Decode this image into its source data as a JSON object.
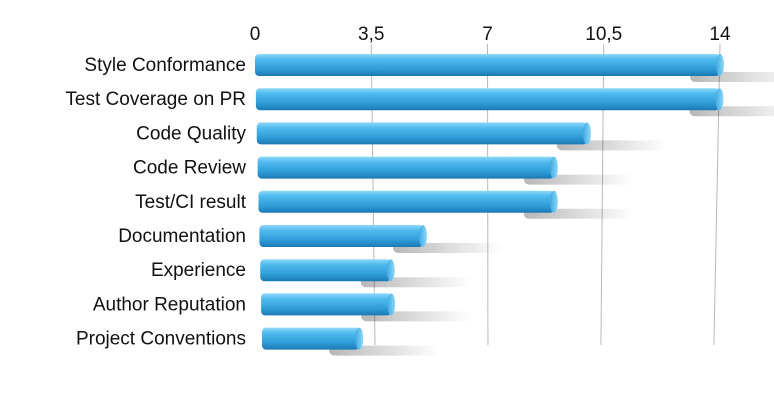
{
  "chart_data": {
    "type": "bar",
    "orientation": "horizontal",
    "categories": [
      "Style Conformance",
      "Test Coverage on PR",
      "Code Quality",
      "Code Review",
      "Test/CI result",
      "Documentation",
      "Experience",
      "Author Reputation",
      "Project Conventions"
    ],
    "values": [
      14,
      14,
      10,
      9,
      9,
      5,
      4,
      4,
      3
    ],
    "xlim": [
      0,
      14
    ],
    "x_ticks": [
      "0",
      "3,5",
      "7",
      "10,5",
      "14"
    ],
    "x_tick_values": [
      0,
      3.5,
      7,
      10.5,
      14
    ],
    "tick_position": "top",
    "grid": "vertical",
    "title": "",
    "xlabel": "",
    "ylabel": "",
    "bar_color": "#3aa8e0"
  }
}
